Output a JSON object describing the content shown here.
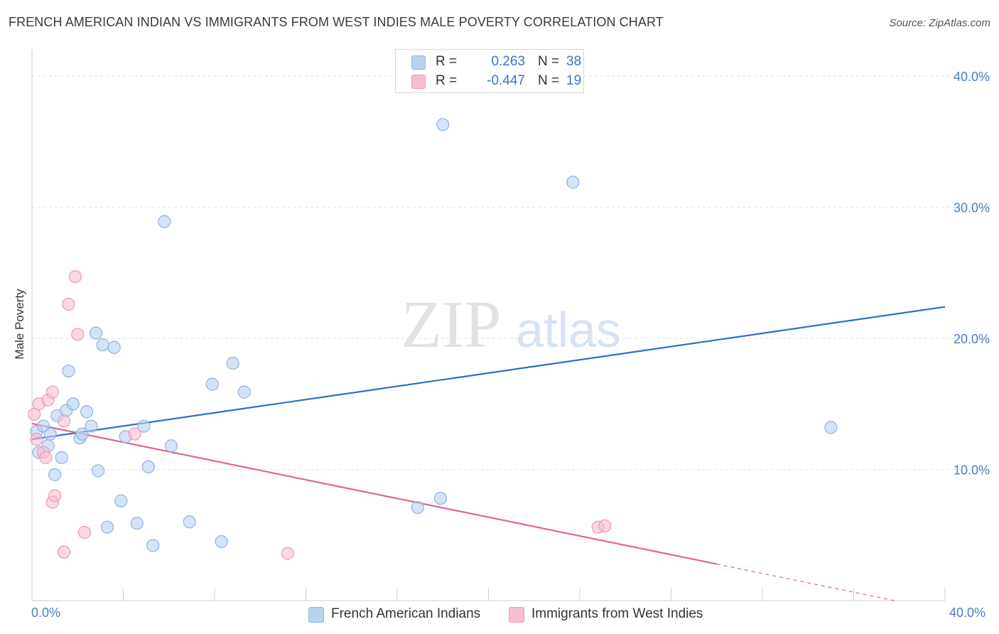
{
  "header": {
    "title": "FRENCH AMERICAN INDIAN VS IMMIGRANTS FROM WEST INDIES MALE POVERTY CORRELATION CHART",
    "source": "Source: ZipAtlas.com"
  },
  "watermark": {
    "zip": "ZIP",
    "atlas": "atlas"
  },
  "colors": {
    "blue_fill": "#b9d1f1",
    "blue_stroke": "#8fb2e3",
    "blue_line": "#2b6fce",
    "pink_fill": "#f6bfd0",
    "pink_stroke": "#ee9ab4",
    "pink_line": "#e0668f",
    "grid": "#e2e2e2",
    "axis_text": "#4a7cc9"
  },
  "legend": {
    "rows": [
      {
        "r_label": "R =",
        "r_value": "0.263",
        "n_label": "N =",
        "n_value": "38"
      },
      {
        "r_label": "R =",
        "r_value": "-0.447",
        "n_label": "N =",
        "n_value": "19"
      }
    ]
  },
  "bottom_legend": {
    "series1": "French American Indians",
    "series2": "Immigrants from West Indies"
  },
  "axes": {
    "x_min_label": "0.0%",
    "x_max_label": "40.0%"
  },
  "chart_data": {
    "type": "scatter",
    "title": "FRENCH AMERICAN INDIAN VS IMMIGRANTS FROM WEST INDIES MALE POVERTY CORRELATION CHART",
    "xlabel": "",
    "ylabel": "Male Poverty",
    "xlim": [
      0,
      40
    ],
    "ylim": [
      0,
      42
    ],
    "y_ticks": [
      10,
      20,
      30,
      40
    ],
    "y_tick_labels": [
      "10.0%",
      "20.0%",
      "30.0%",
      "40.0%"
    ],
    "series": [
      {
        "name": "French American Indians",
        "R": 0.263,
        "N": 38,
        "trend": {
          "x": [
            0,
            40
          ],
          "y": [
            12.3,
            22.4
          ],
          "solid_to": 40
        },
        "points": [
          [
            0.2,
            12.9
          ],
          [
            0.3,
            11.3
          ],
          [
            0.5,
            13.3
          ],
          [
            0.7,
            11.8
          ],
          [
            0.8,
            12.7
          ],
          [
            1.0,
            9.6
          ],
          [
            1.1,
            14.1
          ],
          [
            1.3,
            10.9
          ],
          [
            1.5,
            14.5
          ],
          [
            1.6,
            17.5
          ],
          [
            1.8,
            15.0
          ],
          [
            2.1,
            12.4
          ],
          [
            2.2,
            12.7
          ],
          [
            2.4,
            14.4
          ],
          [
            2.6,
            13.3
          ],
          [
            2.8,
            20.4
          ],
          [
            2.9,
            9.9
          ],
          [
            3.1,
            19.5
          ],
          [
            3.3,
            5.6
          ],
          [
            3.6,
            19.3
          ],
          [
            3.9,
            7.6
          ],
          [
            4.1,
            12.5
          ],
          [
            4.6,
            5.9
          ],
          [
            4.9,
            13.3
          ],
          [
            5.1,
            10.2
          ],
          [
            5.3,
            4.2
          ],
          [
            5.8,
            28.9
          ],
          [
            6.1,
            11.8
          ],
          [
            6.9,
            6.0
          ],
          [
            7.9,
            16.5
          ],
          [
            8.3,
            4.5
          ],
          [
            8.8,
            18.1
          ],
          [
            9.3,
            15.9
          ],
          [
            16.9,
            7.1
          ],
          [
            17.9,
            7.8
          ],
          [
            18.0,
            36.3
          ],
          [
            23.7,
            31.9
          ],
          [
            35.0,
            13.2
          ]
        ]
      },
      {
        "name": "Immigrants from West Indies",
        "R": -0.447,
        "N": 19,
        "trend": {
          "x": [
            0,
            37.8
          ],
          "y": [
            13.5,
            0.0
          ],
          "solid_to": 30.0
        },
        "points": [
          [
            0.1,
            14.2
          ],
          [
            0.2,
            12.3
          ],
          [
            0.3,
            15.0
          ],
          [
            0.5,
            11.3
          ],
          [
            0.6,
            10.9
          ],
          [
            0.7,
            15.3
          ],
          [
            0.9,
            15.9
          ],
          [
            0.9,
            7.5
          ],
          [
            1.0,
            8.0
          ],
          [
            1.4,
            13.7
          ],
          [
            1.4,
            3.7
          ],
          [
            1.6,
            22.6
          ],
          [
            1.9,
            24.7
          ],
          [
            2.0,
            20.3
          ],
          [
            2.3,
            5.2
          ],
          [
            4.5,
            12.7
          ],
          [
            11.2,
            3.6
          ],
          [
            24.8,
            5.6
          ],
          [
            25.1,
            5.7
          ]
        ]
      }
    ]
  }
}
